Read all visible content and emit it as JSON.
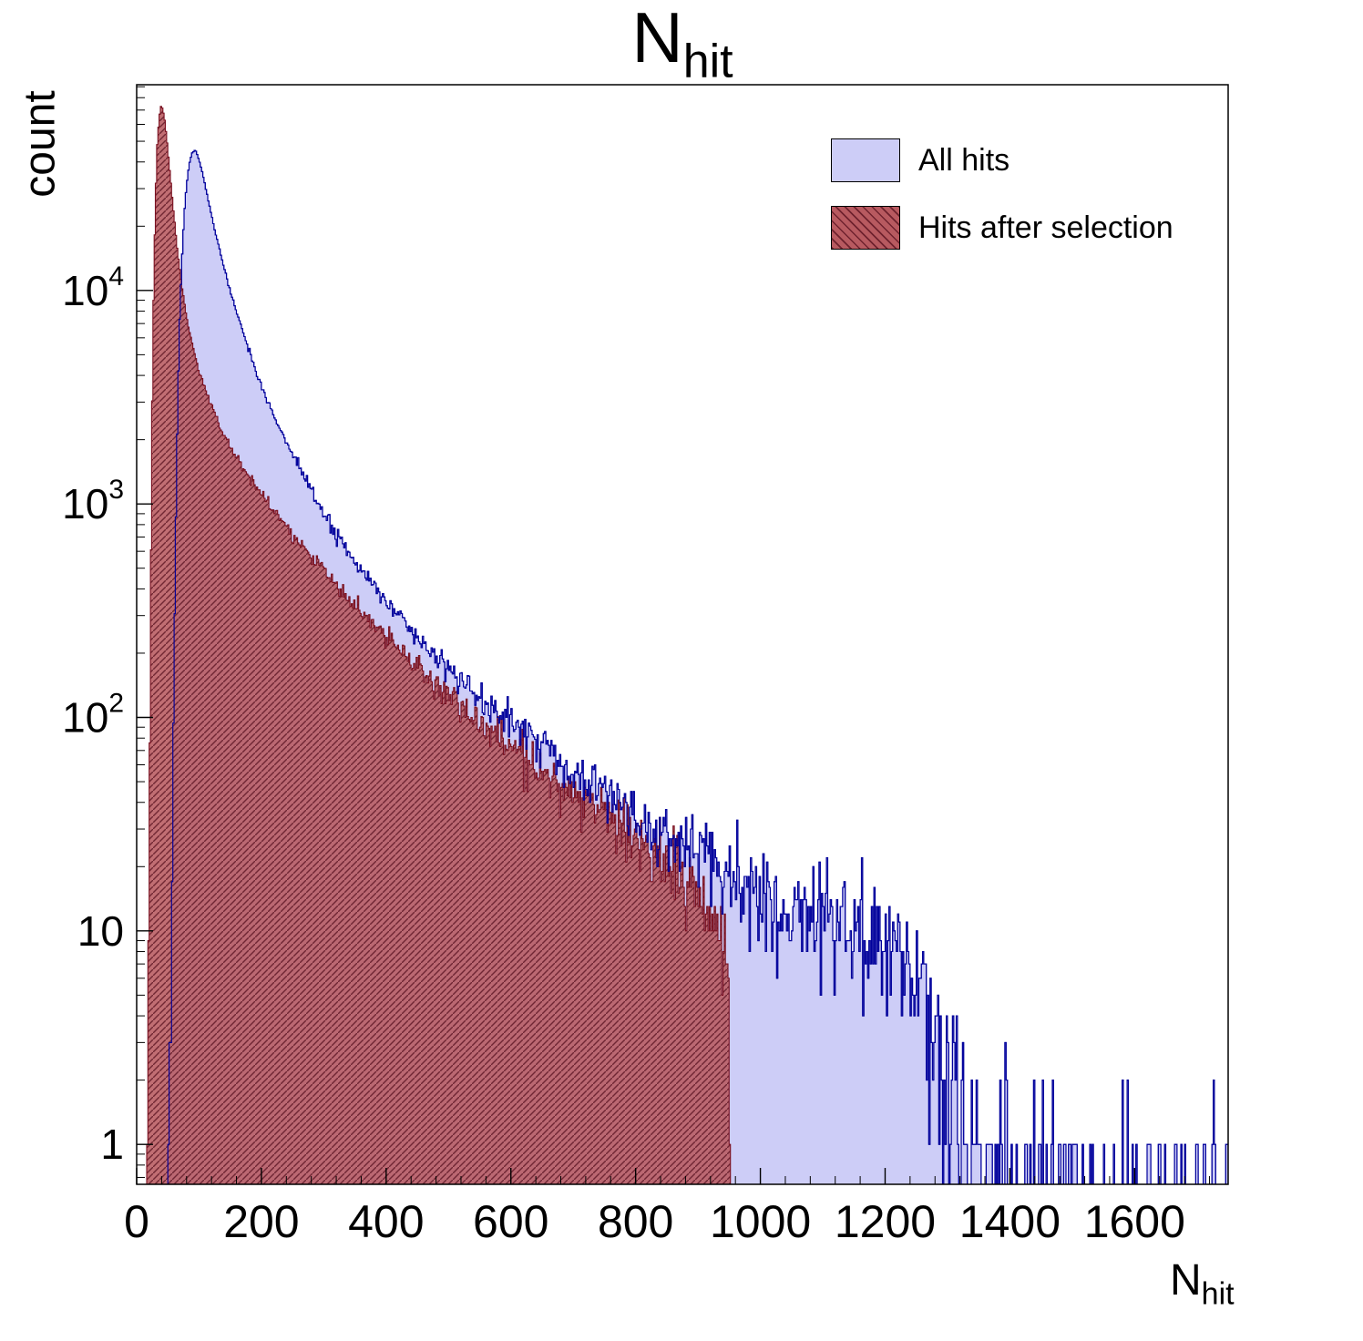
{
  "title": {
    "main": "N",
    "sub": "hit"
  },
  "axes": {
    "ylabel": "count",
    "xlabel_main": "N",
    "xlabel_sub": "hit",
    "x_range": [
      0,
      1750
    ],
    "y_range": [
      0.65,
      92000
    ],
    "x_minor_step": 40,
    "x_ticks": [
      {
        "v": 0,
        "label": "0"
      },
      {
        "v": 200,
        "label": "200"
      },
      {
        "v": 400,
        "label": "400"
      },
      {
        "v": 600,
        "label": "600"
      },
      {
        "v": 800,
        "label": "800"
      },
      {
        "v": 1000,
        "label": "1000"
      },
      {
        "v": 1200,
        "label": "1200"
      },
      {
        "v": 1400,
        "label": "1400"
      },
      {
        "v": 1600,
        "label": "1600"
      }
    ],
    "y_ticks": [
      {
        "v": 1,
        "m": "1"
      },
      {
        "v": 10,
        "m": "10"
      },
      {
        "v": 100,
        "m": "10",
        "e": "2"
      },
      {
        "v": 1000,
        "m": "10",
        "e": "3"
      },
      {
        "v": 10000,
        "m": "10",
        "e": "4"
      }
    ]
  },
  "legend": [
    {
      "label": "All hits",
      "swatch": "blue"
    },
    {
      "label": "Hits after selection",
      "swatch": "red-hatch"
    }
  ],
  "chart_data": {
    "type": "histogram",
    "y_scale": "log",
    "title": "N_hit",
    "xlabel": "N_hit",
    "ylabel": "count",
    "bin_width": 2,
    "seeds": [
      41,
      97
    ],
    "series": [
      {
        "name": "All hits",
        "fill": "#cdcdf7",
        "edge": "#00009b",
        "opacity": 1,
        "hatch": false,
        "x_start": 50,
        "x_end": 1750,
        "envelope": [
          [
            50,
            0.4
          ],
          [
            55,
            4
          ],
          [
            60,
            200
          ],
          [
            64,
            1500
          ],
          [
            68,
            6000
          ],
          [
            72,
            13000
          ],
          [
            76,
            22000
          ],
          [
            80,
            31000
          ],
          [
            84,
            38500
          ],
          [
            88,
            43500
          ],
          [
            92,
            45500
          ],
          [
            96,
            44500
          ],
          [
            100,
            41000
          ],
          [
            106,
            35000
          ],
          [
            112,
            29000
          ],
          [
            120,
            22500
          ],
          [
            130,
            16800
          ],
          [
            140,
            12800
          ],
          [
            150,
            10000
          ],
          [
            162,
            7600
          ],
          [
            176,
            5700
          ],
          [
            190,
            4300
          ],
          [
            200,
            3600
          ],
          [
            215,
            2800
          ],
          [
            230,
            2250
          ],
          [
            245,
            1820
          ],
          [
            260,
            1500
          ],
          [
            280,
            1160
          ],
          [
            300,
            910
          ],
          [
            320,
            730
          ],
          [
            340,
            600
          ],
          [
            360,
            495
          ],
          [
            380,
            415
          ],
          [
            400,
            350
          ],
          [
            425,
            285
          ],
          [
            450,
            237
          ],
          [
            475,
            200
          ],
          [
            500,
            170
          ],
          [
            530,
            140
          ],
          [
            560,
            117
          ],
          [
            590,
            99
          ],
          [
            620,
            86
          ],
          [
            650,
            74
          ],
          [
            680,
            63
          ],
          [
            710,
            55
          ],
          [
            740,
            48
          ],
          [
            770,
            42
          ],
          [
            800,
            36
          ],
          [
            830,
            31
          ],
          [
            860,
            27
          ],
          [
            890,
            24
          ],
          [
            920,
            21
          ],
          [
            950,
            18.5
          ],
          [
            980,
            16.5
          ],
          [
            1010,
            15
          ],
          [
            1040,
            13.8
          ],
          [
            1070,
            12.8
          ],
          [
            1100,
            12
          ],
          [
            1130,
            11.2
          ],
          [
            1160,
            10.5
          ],
          [
            1190,
            10
          ],
          [
            1215,
            9.4
          ],
          [
            1235,
            8.5
          ],
          [
            1248,
            6.5
          ],
          [
            1258,
            4.2
          ],
          [
            1268,
            3
          ],
          [
            1285,
            2.2
          ],
          [
            1310,
            1.6
          ],
          [
            1340,
            1.1
          ],
          [
            1370,
            0.75
          ],
          [
            1420,
            0.5
          ],
          [
            1480,
            0.38
          ],
          [
            1560,
            0.3
          ],
          [
            1650,
            0.26
          ],
          [
            1750,
            0.22
          ]
        ]
      },
      {
        "name": "Hits after selection",
        "fill": "#b85a60",
        "edge": "#7a1020",
        "opacity": 0.88,
        "hatch": true,
        "x_start": 16,
        "x_end": 952,
        "envelope": [
          [
            16,
            0.3
          ],
          [
            20,
            25
          ],
          [
            24,
            1800
          ],
          [
            27,
            9000
          ],
          [
            30,
            26000
          ],
          [
            33,
            48000
          ],
          [
            36,
            64000
          ],
          [
            39,
            72500
          ],
          [
            42,
            71000
          ],
          [
            45,
            63000
          ],
          [
            48,
            52500
          ],
          [
            52,
            39500
          ],
          [
            56,
            29500
          ],
          [
            60,
            22000
          ],
          [
            65,
            15800
          ],
          [
            70,
            11800
          ],
          [
            76,
            8900
          ],
          [
            82,
            7000
          ],
          [
            90,
            5400
          ],
          [
            100,
            4200
          ],
          [
            112,
            3300
          ],
          [
            125,
            2640
          ],
          [
            140,
            2120
          ],
          [
            155,
            1760
          ],
          [
            170,
            1490
          ],
          [
            185,
            1280
          ],
          [
            200,
            1110
          ],
          [
            220,
            930
          ],
          [
            240,
            780
          ],
          [
            260,
            660
          ],
          [
            280,
            565
          ],
          [
            300,
            485
          ],
          [
            325,
            400
          ],
          [
            350,
            333
          ],
          [
            375,
            280
          ],
          [
            400,
            236
          ],
          [
            430,
            195
          ],
          [
            460,
            163
          ],
          [
            490,
            137
          ],
          [
            520,
            116
          ],
          [
            550,
            95
          ],
          [
            580,
            81
          ],
          [
            610,
            69
          ],
          [
            640,
            60
          ],
          [
            670,
            52
          ],
          [
            700,
            45
          ],
          [
            730,
            39
          ],
          [
            760,
            33
          ],
          [
            790,
            28
          ],
          [
            820,
            24
          ],
          [
            850,
            21
          ],
          [
            880,
            17.5
          ],
          [
            905,
            14.5
          ],
          [
            925,
            12
          ],
          [
            940,
            10
          ],
          [
            948,
            7
          ],
          [
            951,
            2
          ],
          [
            952,
            0.05
          ]
        ]
      }
    ]
  }
}
